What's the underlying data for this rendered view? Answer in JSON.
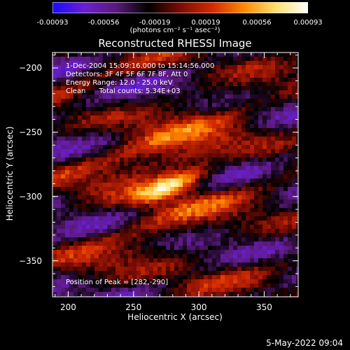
{
  "colorbar": {
    "tick_labels": [
      "-0.00093",
      "-0.00056",
      "-0.00019",
      "0.00019",
      "0.00056",
      "0.00093"
    ],
    "unit": "(photons cm⁻² s⁻¹ asec⁻²)",
    "colors": [
      "#1a0aff",
      "#6a1fd0",
      "#5a1a7a",
      "#000000",
      "#7a0c05",
      "#d22a00",
      "#ff8a00",
      "#ffe070",
      "#ffffff"
    ]
  },
  "title": "Reconstructed RHESSI Image",
  "info": {
    "time_range": "1-Dec-2004 15:09:16.000 to 15:14:56.000",
    "detectors": "Detectors: 3F 4F 5F 6F 7F 8F, Att 0",
    "energy": "Energy Range: 12.0 - 25.0 keV",
    "clean": "Clean      Total counts: 5.34E+03",
    "peak": "Position of Peak = [282,-290]"
  },
  "timestamp": "5-May-2022 09:04",
  "chart_data": {
    "type": "heatmap",
    "title": "Reconstructed RHESSI Image",
    "xlabel": "Heliocentric X (arcsec)",
    "ylabel": "Heliocentric Y (arcsec)",
    "xlim": [
      188,
      376
    ],
    "ylim": [
      -378,
      -188
    ],
    "xticks": [
      200,
      250,
      300,
      350
    ],
    "yticks": [
      -200,
      -250,
      -300,
      -350
    ],
    "colorbar_range": [
      -0.00093,
      0.00093
    ],
    "peak": [
      282,
      -290
    ],
    "bright_bands": [
      {
        "y": -292,
        "x_center": 278,
        "width": 40,
        "intensity": 0.00093
      },
      {
        "y": -272,
        "x_center": 275,
        "width": 90,
        "intensity": 0.00062
      },
      {
        "y": -258,
        "x_center": 265,
        "width": 110,
        "intensity": 0.00045
      },
      {
        "y": -312,
        "x_center": 285,
        "width": 120,
        "intensity": 0.00042
      },
      {
        "y": -228,
        "x_center": 300,
        "width": 110,
        "intensity": 0.00035
      },
      {
        "y": -340,
        "x_center": 260,
        "width": 130,
        "intensity": 0.00033
      },
      {
        "y": -362,
        "x_center": 320,
        "width": 90,
        "intensity": 0.0003
      },
      {
        "y": -210,
        "x_center": 220,
        "width": 90,
        "intensity": 0.00028
      }
    ]
  }
}
